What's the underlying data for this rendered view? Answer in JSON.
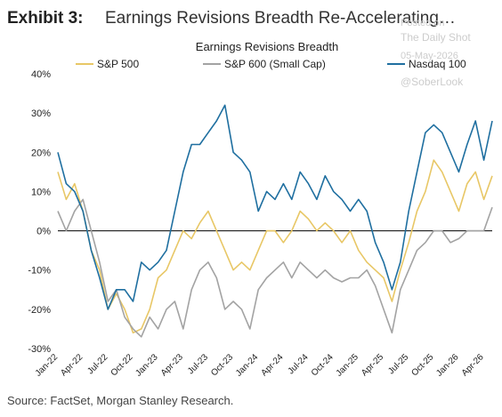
{
  "chart_data": {
    "type": "line",
    "title": "Earnings Revisions Breadth Re-Accelerating…",
    "exhibit": "Exhibit 3:",
    "subtitle": "Earnings Revisions Breadth",
    "source": "Source: FactSet, Morgan Stanley Research.",
    "annotations": [
      "Posted on",
      "The Daily Shot",
      "05-May-2026",
      "@SoberLook"
    ],
    "categories": [
      "Jan-22",
      null,
      null,
      "Apr-22",
      null,
      null,
      "Jul-22",
      null,
      null,
      "Oct-22",
      null,
      null,
      "Jan-23",
      null,
      null,
      "Apr-23",
      null,
      null,
      "Jul-23",
      null,
      null,
      "Oct-23",
      null,
      null,
      "Jan-24",
      null,
      null,
      "Apr-24",
      null,
      null,
      "Jul-24",
      null,
      null,
      "Oct-24",
      null,
      null,
      "Jan-25",
      null,
      null,
      "Apr-25",
      null,
      null,
      "Jul-25",
      null,
      null,
      "Oct-25",
      null,
      null,
      "Jan-26",
      null,
      null,
      "Apr-26",
      null
    ],
    "series": [
      {
        "name": "S&P 500",
        "color": "#e8c766",
        "values": [
          15,
          8,
          12,
          5,
          -5,
          -10,
          -20,
          -16,
          -20,
          -26,
          -25,
          -20,
          -12,
          -10,
          -5,
          0,
          -2,
          2,
          5,
          0,
          -5,
          -10,
          -8,
          -10,
          -5,
          0,
          0,
          -3,
          0,
          5,
          3,
          0,
          2,
          0,
          -3,
          0,
          -5,
          -8,
          -10,
          -12,
          -18,
          -10,
          -3,
          5,
          10,
          18,
          15,
          10,
          5,
          12,
          15,
          8,
          14
        ]
      },
      {
        "name": "S&P 600 (Small Cap)",
        "color": "#a3a3a3",
        "values": [
          5,
          0,
          5,
          8,
          0,
          -8,
          -18,
          -15,
          -22,
          -25,
          -27,
          -22,
          -25,
          -20,
          -18,
          -25,
          -15,
          -10,
          -8,
          -12,
          -20,
          -18,
          -20,
          -25,
          -15,
          -12,
          -10,
          -8,
          -12,
          -8,
          -10,
          -12,
          -10,
          -12,
          -13,
          -12,
          -12,
          -10,
          -14,
          -20,
          -26,
          -15,
          -10,
          -5,
          -3,
          0,
          0,
          -3,
          -2,
          0,
          0,
          0,
          6
        ]
      },
      {
        "name": "Nasdaq 100",
        "color": "#1f6fa0",
        "values": [
          20,
          12,
          10,
          5,
          -5,
          -12,
          -20,
          -15,
          -15,
          -18,
          -8,
          -10,
          -8,
          -5,
          5,
          15,
          22,
          22,
          25,
          28,
          32,
          20,
          18,
          15,
          5,
          10,
          8,
          12,
          8,
          15,
          12,
          8,
          14,
          10,
          8,
          5,
          8,
          5,
          -3,
          -8,
          -15,
          -8,
          5,
          15,
          25,
          27,
          25,
          20,
          15,
          22,
          28,
          18,
          28
        ]
      }
    ],
    "ylim": [
      -30,
      40
    ],
    "yticks": [
      {
        "value": -30,
        "label": "-30%"
      },
      {
        "value": -20,
        "label": "-20%"
      },
      {
        "value": -10,
        "label": "-10%"
      },
      {
        "value": 0,
        "label": "0%"
      },
      {
        "value": 10,
        "label": "10%"
      },
      {
        "value": 20,
        "label": "20%"
      },
      {
        "value": 30,
        "label": "30%"
      },
      {
        "value": 40,
        "label": "40%"
      }
    ],
    "grid": false,
    "zero_line": true,
    "legend": "top"
  }
}
